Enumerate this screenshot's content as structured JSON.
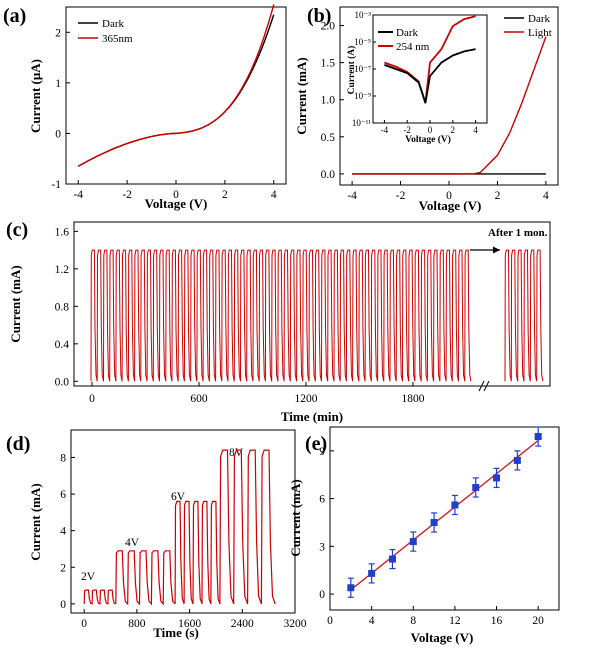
{
  "colors": {
    "dark": "#000000",
    "light": "#cc0000",
    "points": "#1f3fcf",
    "fit": "#cc2222"
  },
  "panels": {
    "a": {
      "label": "(a)",
      "xlabel": "Voltage (V)",
      "ylabel": "Current (μA)",
      "xticks": [
        "-4",
        "-2",
        "0",
        "2",
        "4"
      ],
      "yticks": [
        "-1",
        "0",
        "1",
        "2"
      ],
      "legend": [
        "Dark",
        "365nm"
      ]
    },
    "b": {
      "label": "(b)",
      "xlabel": "Voltage (V)",
      "ylabel": "Current (mA)",
      "xticks": [
        "-4",
        "-2",
        "0",
        "2",
        "4"
      ],
      "yticks": [
        "0.0",
        "0.5",
        "1.0",
        "1.5",
        "2.0"
      ],
      "legend": [
        "Dark",
        "Light"
      ],
      "inset": {
        "xlabel": "Voltage (V)",
        "ylabel": "Current (A)",
        "xticks": [
          "-4",
          "-2",
          "0",
          "2",
          "4"
        ],
        "yticks": [
          "10⁻³",
          "10⁻⁵",
          "10⁻⁷",
          "10⁻⁹",
          "10⁻¹¹"
        ],
        "legend": [
          "Dark",
          "254 nm"
        ]
      }
    },
    "c": {
      "label": "(c)",
      "xlabel": "Time (min)",
      "ylabel": "Current (mA)",
      "xticks": [
        "0",
        "600",
        "1200",
        "1800"
      ],
      "yticks": [
        "0.0",
        "0.4",
        "0.8",
        "1.2",
        "1.6"
      ],
      "annotation": "After 1 mon."
    },
    "d": {
      "label": "(d)",
      "xlabel": "Time (s)",
      "ylabel": "Current (mA)",
      "xticks": [
        "0",
        "800",
        "1600",
        "2400",
        "3200"
      ],
      "yticks": [
        "0",
        "2",
        "4",
        "6",
        "8"
      ],
      "voltage_labels": [
        "2V",
        "4V",
        "6V",
        "8V"
      ]
    },
    "e": {
      "label": "(e)",
      "xlabel": "Voltage (V)",
      "ylabel": "Current (mA)",
      "xticks": [
        "0",
        "4",
        "8",
        "12",
        "16",
        "20"
      ],
      "yticks": [
        "0",
        "3",
        "6",
        "9"
      ]
    }
  },
  "chart_data": [
    {
      "type": "line",
      "panel": "a",
      "title": "",
      "xlabel": "Voltage (V)",
      "ylabel": "Current (μA)",
      "xlim": [
        -4.5,
        4.5
      ],
      "ylim": [
        -1,
        2.5
      ],
      "series": [
        {
          "name": "Dark",
          "x": [
            -4,
            -3,
            -2,
            -1,
            0,
            1,
            2,
            3,
            4
          ],
          "y": [
            -0.65,
            -0.35,
            -0.2,
            -0.08,
            0.0,
            0.15,
            0.45,
            1.2,
            2.35
          ]
        },
        {
          "name": "365nm",
          "x": [
            -4,
            -3,
            -2,
            -1,
            0,
            1,
            2,
            3,
            4
          ],
          "y": [
            -0.65,
            -0.36,
            -0.21,
            -0.08,
            0.0,
            0.15,
            0.46,
            1.25,
            2.55
          ]
        }
      ]
    },
    {
      "type": "line",
      "panel": "b",
      "xlabel": "Voltage (V)",
      "ylabel": "Current (mA)",
      "xlim": [
        -4.5,
        4.5
      ],
      "ylim": [
        -0.15,
        2.25
      ],
      "series": [
        {
          "name": "Dark",
          "x": [
            -4,
            -2,
            0,
            2,
            4
          ],
          "y": [
            0,
            0,
            0,
            0,
            0
          ]
        },
        {
          "name": "Light",
          "x": [
            -4,
            0,
            1,
            1.3,
            2,
            2.5,
            3,
            3.5,
            4
          ],
          "y": [
            0,
            0,
            0,
            0.02,
            0.25,
            0.55,
            0.95,
            1.4,
            1.85
          ]
        }
      ]
    },
    {
      "type": "line",
      "panel": "b-inset",
      "xlabel": "Voltage (V)",
      "ylabel": "Current (A)",
      "yscale": "log",
      "xlim": [
        -5,
        5
      ],
      "ylim": [
        1e-11,
        0.001
      ],
      "series": [
        {
          "name": "Dark",
          "x": [
            -4,
            -3,
            -2,
            -1,
            -0.6,
            -0.4,
            0,
            1,
            2,
            3,
            4
          ],
          "y": [
            2e-07,
            1e-07,
            5e-08,
            1e-08,
            1e-09,
            3e-10,
            3e-08,
            3e-07,
            1e-06,
            2e-06,
            3e-06
          ]
        },
        {
          "name": "254 nm",
          "x": [
            -4,
            -3,
            -2,
            -1,
            -0.6,
            -0.4,
            0,
            1,
            2,
            3,
            4
          ],
          "y": [
            3e-07,
            1.5e-07,
            6e-08,
            1.2e-08,
            1e-09,
            3e-10,
            3e-07,
            3e-06,
            0.00015,
            0.0005,
            0.0008
          ]
        }
      ]
    },
    {
      "type": "line",
      "panel": "c",
      "xlabel": "Time (min)",
      "ylabel": "Current (mA)",
      "ylim": [
        -0.05,
        1.7
      ],
      "on_current": 1.4,
      "off_current": 0.0,
      "cycles_before_break": 61,
      "cycles_after_break": 6,
      "annotation": "After 1 mon."
    },
    {
      "type": "line",
      "panel": "d",
      "xlabel": "Time (s)",
      "ylabel": "Current (mA)",
      "xlim": [
        -200,
        3200
      ],
      "ylim": [
        -0.5,
        9.5
      ],
      "series": [
        {
          "name": "2V",
          "on_current": 0.75,
          "cycles": 4,
          "t_start": 0,
          "t_end": 480
        },
        {
          "name": "4V",
          "on_current": 2.9,
          "cycles": 5,
          "t_start": 480,
          "t_end": 1380
        },
        {
          "name": "6V",
          "on_current": 5.6,
          "cycles": 5,
          "t_start": 1380,
          "t_end": 2060
        },
        {
          "name": "8V",
          "on_current": 8.4,
          "cycles": 4,
          "t_start": 2060,
          "t_end": 2900
        }
      ]
    },
    {
      "type": "scatter",
      "panel": "e",
      "xlabel": "Voltage (V)",
      "ylabel": "Current (mA)",
      "xlim": [
        0,
        22
      ],
      "ylim": [
        -1,
        10.5
      ],
      "x": [
        2,
        4,
        6,
        8,
        10,
        12,
        14,
        16,
        18,
        20
      ],
      "y": [
        0.4,
        1.3,
        2.2,
        3.3,
        4.5,
        5.6,
        6.7,
        7.3,
        8.4,
        9.9
      ],
      "error": [
        0.6,
        0.6,
        0.6,
        0.6,
        0.6,
        0.6,
        0.6,
        0.6,
        0.6,
        0.6
      ]
    }
  ]
}
